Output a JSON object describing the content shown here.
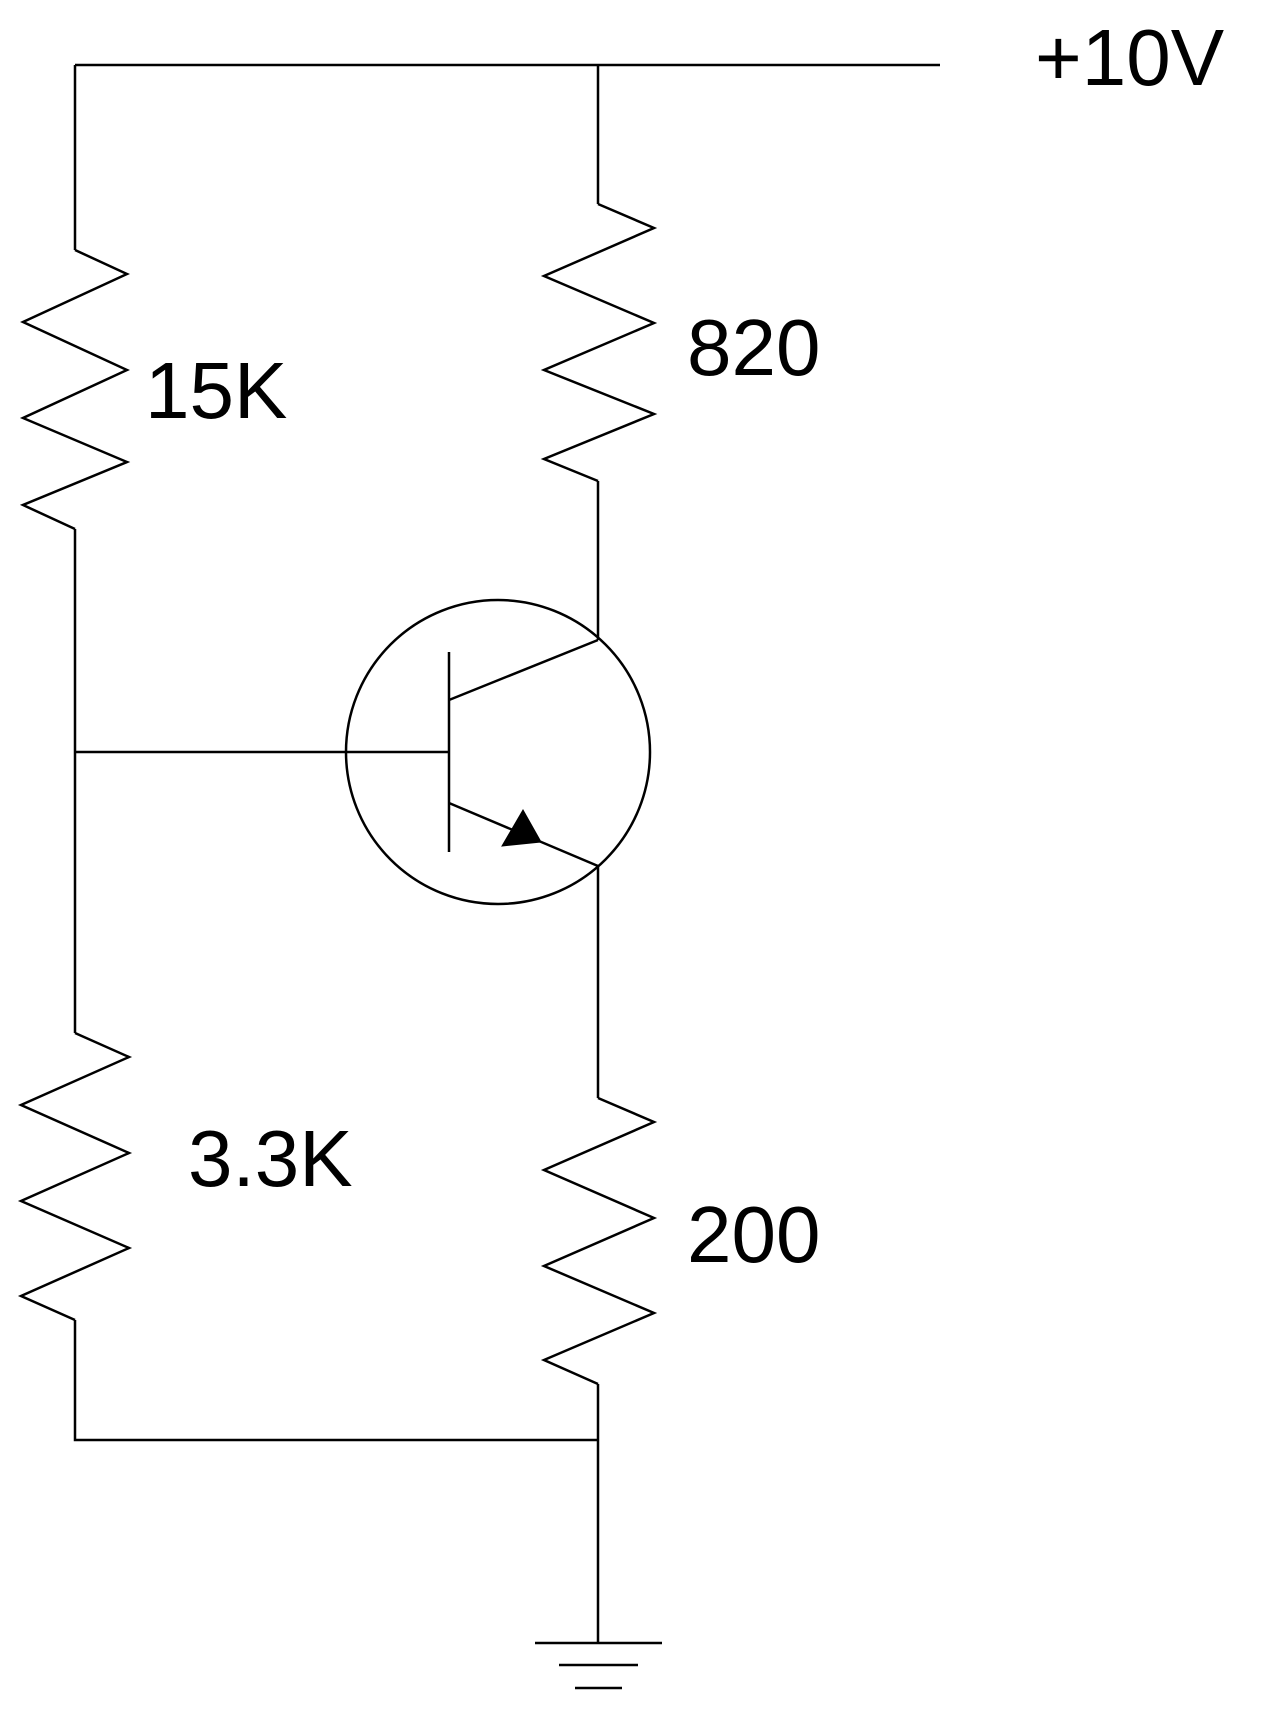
{
  "supply": {
    "label": "+10V"
  },
  "resistors": {
    "r_top_left": {
      "label": "15K"
    },
    "r_collector": {
      "label": "820"
    },
    "r_bottom_left": {
      "label": "3.3K"
    },
    "r_emitter": {
      "label": "200"
    }
  },
  "transistor": {
    "type": "NPN"
  },
  "ground": {
    "icon": "ground-icon"
  }
}
